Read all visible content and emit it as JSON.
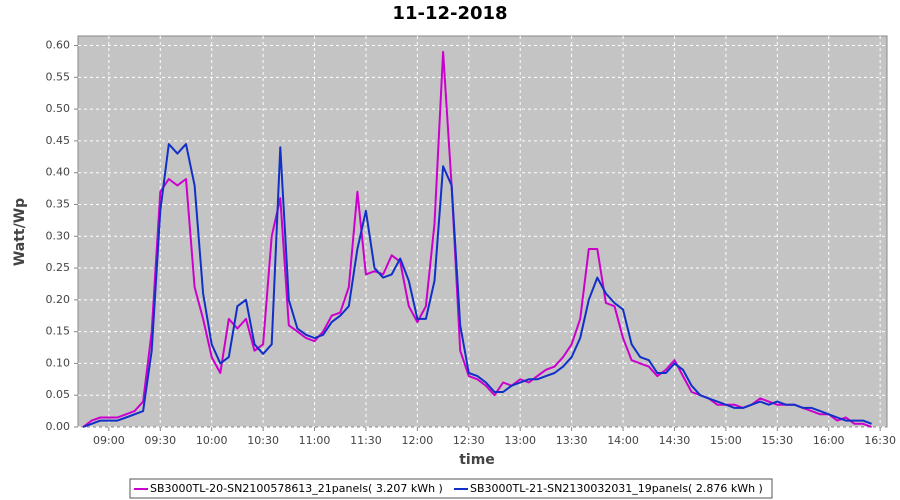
{
  "chart_data": {
    "type": "line",
    "title": "11-12-2018",
    "x_label": "time",
    "y_label": "Watt/Wp",
    "x": [
      "08:45",
      "08:50",
      "08:55",
      "09:00",
      "09:05",
      "09:10",
      "09:15",
      "09:20",
      "09:25",
      "09:30",
      "09:35",
      "09:40",
      "09:45",
      "09:50",
      "09:55",
      "10:00",
      "10:05",
      "10:10",
      "10:15",
      "10:20",
      "10:25",
      "10:30",
      "10:35",
      "10:40",
      "10:45",
      "10:50",
      "10:55",
      "11:00",
      "11:05",
      "11:10",
      "11:15",
      "11:20",
      "11:25",
      "11:30",
      "11:35",
      "11:40",
      "11:45",
      "11:50",
      "11:55",
      "12:00",
      "12:05",
      "12:10",
      "12:15",
      "12:20",
      "12:25",
      "12:30",
      "12:35",
      "12:40",
      "12:45",
      "12:50",
      "12:55",
      "13:00",
      "13:05",
      "13:10",
      "13:15",
      "13:20",
      "13:25",
      "13:30",
      "13:35",
      "13:40",
      "13:45",
      "13:50",
      "13:55",
      "14:00",
      "14:05",
      "14:10",
      "14:15",
      "14:20",
      "14:25",
      "14:30",
      "14:35",
      "14:40",
      "14:45",
      "14:50",
      "14:55",
      "15:00",
      "15:05",
      "15:10",
      "15:15",
      "15:20",
      "15:25",
      "15:30",
      "15:35",
      "15:40",
      "15:45",
      "15:50",
      "15:55",
      "16:00",
      "16:05",
      "16:10",
      "16:15",
      "16:20",
      "16:25"
    ],
    "series": [
      {
        "name": "SB3000TL-20-SN2100578613_21panels( 3.207 kWh )",
        "color": "#cc00cc",
        "values": [
          0,
          0.01,
          0.015,
          0.015,
          0.015,
          0.02,
          0.025,
          0.04,
          0.15,
          0.37,
          0.39,
          0.38,
          0.39,
          0.22,
          0.17,
          0.11,
          0.085,
          0.17,
          0.155,
          0.17,
          0.12,
          0.13,
          0.3,
          0.36,
          0.16,
          0.15,
          0.14,
          0.135,
          0.15,
          0.175,
          0.18,
          0.22,
          0.37,
          0.24,
          0.245,
          0.24,
          0.27,
          0.26,
          0.19,
          0.165,
          0.19,
          0.32,
          0.59,
          0.38,
          0.12,
          0.08,
          0.075,
          0.065,
          0.05,
          0.07,
          0.065,
          0.075,
          0.07,
          0.08,
          0.09,
          0.095,
          0.11,
          0.13,
          0.17,
          0.28,
          0.28,
          0.195,
          0.19,
          0.14,
          0.105,
          0.1,
          0.095,
          0.08,
          0.09,
          0.105,
          0.08,
          0.055,
          0.05,
          0.045,
          0.035,
          0.035,
          0.035,
          0.03,
          0.035,
          0.045,
          0.04,
          0.035,
          0.035,
          0.035,
          0.03,
          0.025,
          0.02,
          0.02,
          0.01,
          0.015,
          0.005,
          0.005,
          0
        ]
      },
      {
        "name": "SB3000TL-21-SN2130032031_19panels( 2.876 kWh )",
        "color": "#1030c8",
        "values": [
          0,
          0.005,
          0.01,
          0.01,
          0.01,
          0.015,
          0.02,
          0.025,
          0.12,
          0.34,
          0.445,
          0.43,
          0.445,
          0.38,
          0.21,
          0.13,
          0.1,
          0.11,
          0.19,
          0.2,
          0.13,
          0.115,
          0.13,
          0.44,
          0.2,
          0.155,
          0.145,
          0.14,
          0.145,
          0.165,
          0.175,
          0.19,
          0.28,
          0.34,
          0.25,
          0.235,
          0.24,
          0.265,
          0.23,
          0.17,
          0.17,
          0.23,
          0.41,
          0.38,
          0.16,
          0.085,
          0.08,
          0.07,
          0.055,
          0.055,
          0.065,
          0.07,
          0.075,
          0.075,
          0.08,
          0.085,
          0.095,
          0.11,
          0.14,
          0.2,
          0.235,
          0.21,
          0.195,
          0.185,
          0.13,
          0.11,
          0.105,
          0.085,
          0.085,
          0.1,
          0.09,
          0.065,
          0.05,
          0.045,
          0.04,
          0.035,
          0.03,
          0.03,
          0.035,
          0.04,
          0.035,
          0.04,
          0.035,
          0.035,
          0.03,
          0.03,
          0.025,
          0.02,
          0.015,
          0.01,
          0.01,
          0.01,
          0.005
        ]
      }
    ],
    "xlim": [
      "08:42",
      "16:34"
    ],
    "xticks": [
      "09:00",
      "09:30",
      "10:00",
      "10:30",
      "11:00",
      "11:30",
      "12:00",
      "12:30",
      "13:00",
      "13:30",
      "14:00",
      "14:30",
      "15:00",
      "15:30",
      "16:00",
      "16:30"
    ],
    "ylim": [
      0,
      0.615
    ],
    "yticks": [
      {
        "value": 0,
        "label": "0.00"
      },
      0.05,
      {
        "value": 0.1,
        "label": "0.10"
      },
      0.15,
      {
        "value": 0.2,
        "label": "0.20"
      },
      0.25,
      {
        "value": 0.3,
        "label": "0.30"
      },
      0.35,
      {
        "value": 0.4,
        "label": "0.40"
      },
      0.45,
      {
        "value": 0.5,
        "label": "0.50"
      },
      0.55,
      {
        "value": 0.6,
        "label": "0.60"
      }
    ],
    "grid": true,
    "legend": "bottom"
  }
}
